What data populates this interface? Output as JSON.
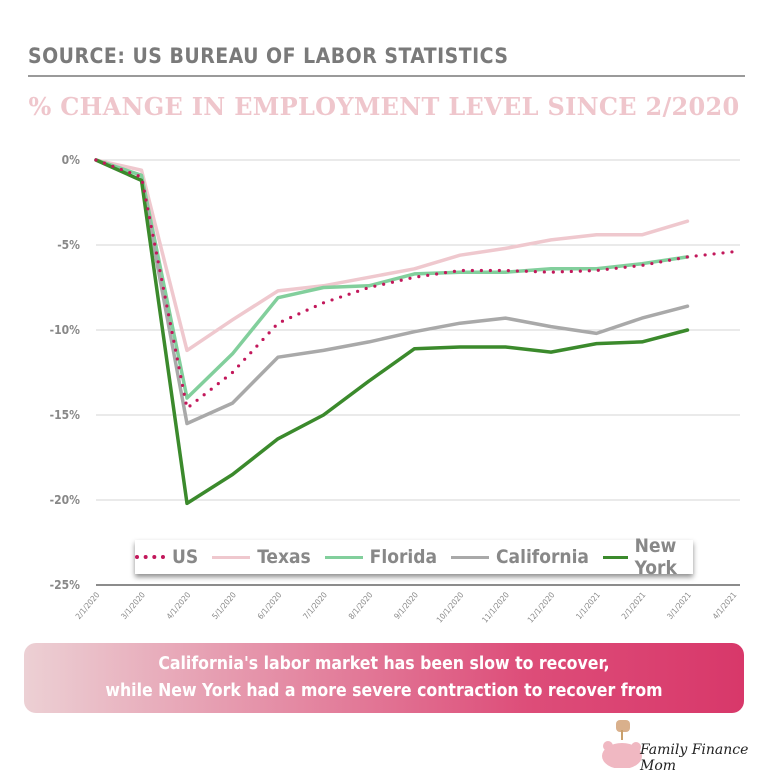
{
  "header": {
    "source": "SOURCE: US BUREAU OF LABOR STATISTICS",
    "title": "% CHANGE IN EMPLOYMENT LEVEL SINCE 2/2020"
  },
  "chart_data": {
    "type": "line",
    "title": "% CHANGE IN EMPLOYMENT LEVEL SINCE 2/2020",
    "x": [
      "2/1/2020",
      "3/1/2020",
      "4/1/2020",
      "5/1/2020",
      "6/1/2020",
      "7/1/2020",
      "8/1/2020",
      "9/1/2020",
      "10/1/2020",
      "11/1/2020",
      "12/1/2020",
      "1/1/2021",
      "2/1/2021",
      "3/1/2021",
      "4/1/2021"
    ],
    "y_ticks": [
      "0%",
      "-5%",
      "-10%",
      "-15%",
      "-20%",
      "-25%"
    ],
    "ylim": [
      -25,
      0
    ],
    "grid": true,
    "legend_placement": "bottom-inside",
    "series": [
      {
        "name": "US",
        "style": "dotted",
        "color": "#c2185b",
        "values": [
          0,
          -1.0,
          -14.6,
          -12.5,
          -9.6,
          -8.4,
          -7.5,
          -6.9,
          -6.5,
          -6.5,
          -6.6,
          -6.5,
          -6.2,
          -5.7,
          -5.4
        ]
      },
      {
        "name": "Texas",
        "style": "solid",
        "color": "#efc8ce",
        "values": [
          0,
          -0.6,
          -11.2,
          -9.4,
          -7.7,
          -7.4,
          -6.9,
          -6.4,
          -5.6,
          -5.2,
          -4.7,
          -4.4,
          -4.4,
          -3.6,
          null
        ]
      },
      {
        "name": "Florida",
        "style": "solid",
        "color": "#82cf9c",
        "values": [
          0,
          -0.9,
          -14.0,
          -11.4,
          -8.1,
          -7.5,
          -7.4,
          -6.7,
          -6.6,
          -6.6,
          -6.4,
          -6.4,
          -6.1,
          -5.7,
          null
        ]
      },
      {
        "name": "California",
        "style": "solid",
        "color": "#a9a9a9",
        "values": [
          0,
          -1.2,
          -15.5,
          -14.3,
          -11.6,
          -11.2,
          -10.7,
          -10.1,
          -9.6,
          -9.3,
          -9.8,
          -10.2,
          -9.3,
          -8.6,
          null
        ]
      },
      {
        "name": "New York",
        "style": "solid",
        "color": "#3b8a2c",
        "values": [
          0,
          -1.2,
          -20.2,
          -18.5,
          -16.4,
          -15.0,
          -13.0,
          -11.1,
          -11.0,
          -11.0,
          -11.3,
          -10.8,
          -10.7,
          -10.0,
          null
        ]
      }
    ]
  },
  "banner": {
    "line1": "California's labor market has been slow to recover,",
    "line2": "while New York had a more severe contraction to recover from"
  },
  "logo": {
    "text": "Family Finance Mom"
  }
}
